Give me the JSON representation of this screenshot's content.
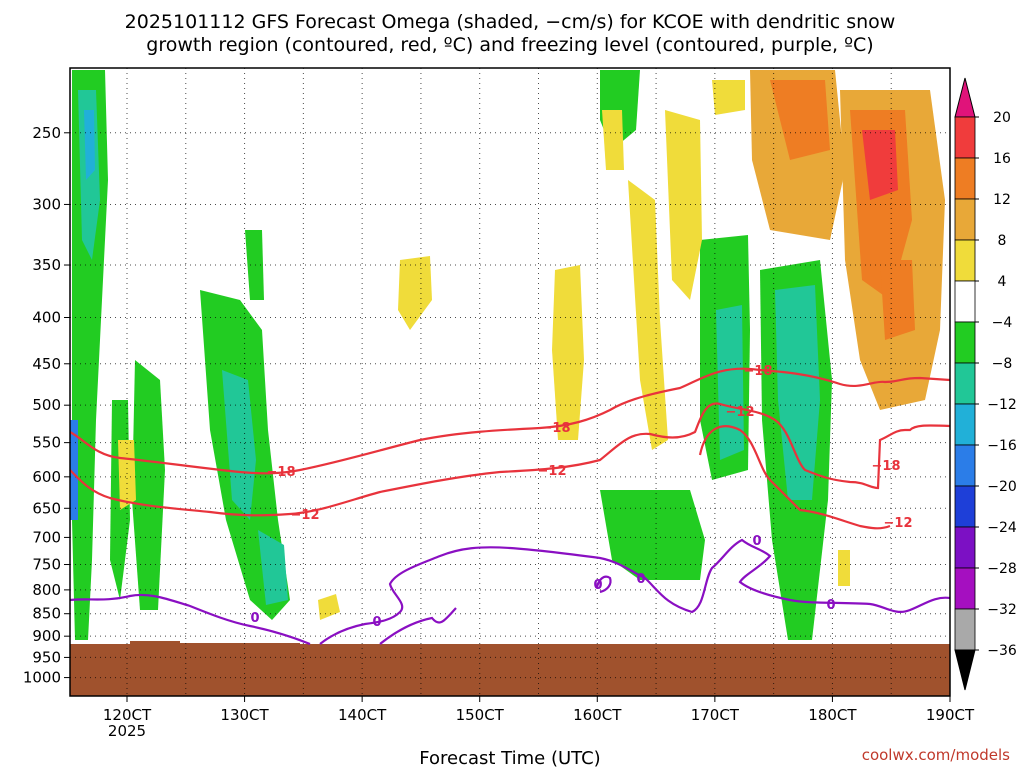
{
  "chart_data": {
    "type": "heatmap",
    "title_lines": [
      "2025101112 GFS Forecast Omega (shaded, −cm/s) for KCOE with dendritic snow",
      "growth region (contoured, red, ºC) and freezing level (contoured, purple, ºC)"
    ],
    "xlabel": "Forecast Time (UTC)",
    "x_ticks": [
      "120CT",
      "130CT",
      "140CT",
      "150CT",
      "160CT",
      "170CT",
      "180CT",
      "190CT"
    ],
    "x_year": "2025",
    "y_ticks": [
      "250",
      "300",
      "350",
      "400",
      "450",
      "500",
      "550",
      "600",
      "650",
      "700",
      "750",
      "800",
      "850",
      "900",
      "950",
      "1000"
    ],
    "y_scale": "log",
    "grid": true,
    "colorbar": {
      "labels": [
        "20",
        "16",
        "12",
        "8",
        "4",
        "−4",
        "−8",
        "−12",
        "−16",
        "−20",
        "−24",
        "−28",
        "−32",
        "−36"
      ],
      "colors": [
        "#e0137a",
        "#f03c3c",
        "#ee7d23",
        "#e8a838",
        "#f0dc3a",
        "#ffffff",
        "#22cc22",
        "#21c797",
        "#21b0d8",
        "#2b7de8",
        "#1e3fd8",
        "#7c10c4",
        "#a50fc0",
        "#a9a9a9",
        "#000000"
      ]
    },
    "contour_labels": {
      "dgz_top": "−18",
      "dgz_bottom": "−12",
      "freezing": "0"
    },
    "terrain_color": "#a0522d",
    "credit": "coolwx.com/models"
  }
}
